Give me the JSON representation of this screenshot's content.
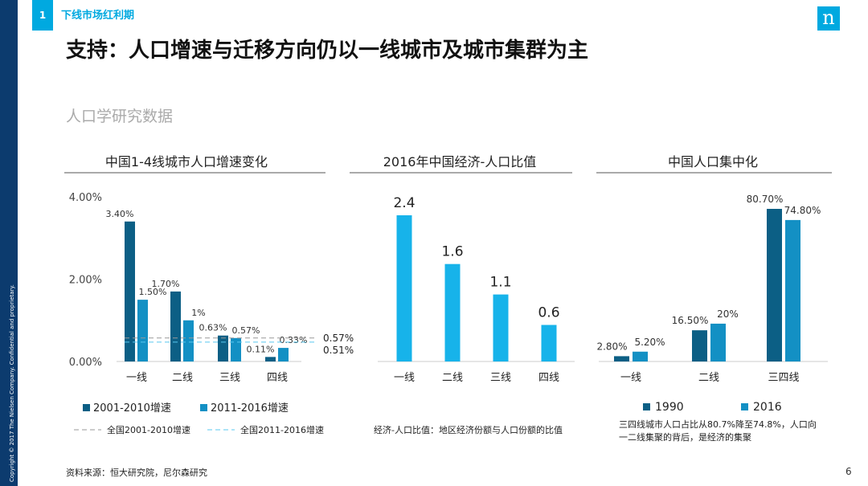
{
  "header": {
    "section_number": "1",
    "section_title": "下线市场红利期",
    "logo_text": "n",
    "title": "支持：人口增速与迁移方向仍以一线城市及城市集群为主",
    "subtitle": "人口学研究数据",
    "copyright": "Copyright © 2017 The Nielsen Company. Confidential and proprietary."
  },
  "footer": {
    "source": "资料来源：恒大研究院，尼尔森研究",
    "page_number": "6"
  },
  "colors": {
    "dark": "#0c5f85",
    "medium": "#1390c4",
    "light": "#17b3ea",
    "gray_line": "#999999",
    "cyan_line": "#5ac8f0"
  },
  "chart_data": [
    {
      "type": "bar",
      "title": "中国1-4线城市人口增速变化",
      "categories": [
        "一线",
        "二线",
        "三线",
        "四线"
      ],
      "series": [
        {
          "name": "2001-2010增速",
          "values": [
            3.4,
            1.7,
            0.63,
            0.11
          ],
          "labels": [
            "3.40%",
            "1.70%",
            "0.63%",
            "0.11%"
          ]
        },
        {
          "name": "2011-2016增速",
          "values": [
            1.5,
            1.0,
            0.57,
            0.33
          ],
          "labels": [
            "1.50%",
            "1%",
            "0.57%",
            "0.33%"
          ]
        }
      ],
      "reference_lines": [
        {
          "name": "全国2001-2010增速",
          "value": 0.57,
          "label": "0.57%"
        },
        {
          "name": "全国2011-2016增速",
          "value": 0.51,
          "label": "0.51%"
        }
      ],
      "yticks": [
        "0.00%",
        "2.00%",
        "4.00%"
      ],
      "ytick_values": [
        0,
        2,
        4
      ],
      "ylim": [
        0,
        4
      ]
    },
    {
      "type": "bar",
      "title": "2016年中国经济-人口比值",
      "categories": [
        "一线",
        "二线",
        "三线",
        "四线"
      ],
      "values": [
        2.4,
        1.6,
        1.1,
        0.6
      ],
      "labels": [
        "2.4",
        "1.6",
        "1.1",
        "0.6"
      ],
      "ylim": [
        0,
        2.6
      ],
      "note": "经济-人口比值：地区经济份额与人口份额的比值"
    },
    {
      "type": "bar",
      "title": "中国人口集中化",
      "categories": [
        "一线",
        "二线",
        "三四线"
      ],
      "series": [
        {
          "name": "1990",
          "values": [
            2.8,
            16.5,
            80.7
          ],
          "labels": [
            "2.80%",
            "16.50%",
            "80.70%"
          ]
        },
        {
          "name": "2016",
          "values": [
            5.2,
            20.0,
            74.8
          ],
          "labels": [
            "5.20%",
            "20%",
            "74.80%"
          ]
        }
      ],
      "ylim": [
        0,
        85
      ],
      "note_line1": "三四线城市人口占比从80.7%降至74.8%，人口向",
      "note_line2": "一二线集聚的背后，是经济的集聚"
    }
  ]
}
